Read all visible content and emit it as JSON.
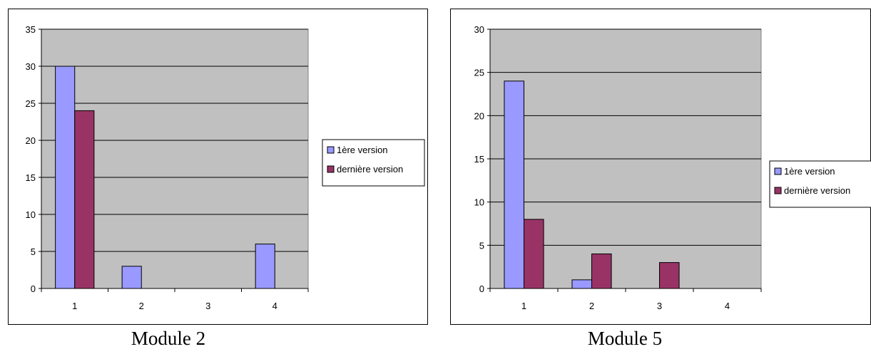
{
  "chart_data": [
    {
      "type": "bar",
      "categories": [
        "1",
        "2",
        "3",
        "4"
      ],
      "series": [
        {
          "name": "1ère version",
          "values": [
            30,
            3,
            0,
            6
          ]
        },
        {
          "name": "dernière version",
          "values": [
            24,
            0,
            0,
            0
          ]
        }
      ],
      "ylim": [
        0,
        35
      ],
      "yticks": [
        "0",
        "5",
        "10",
        "15",
        "20",
        "25",
        "30",
        "35"
      ],
      "grid": true,
      "legend": "right",
      "caption": "Module 2"
    },
    {
      "type": "bar",
      "categories": [
        "1",
        "2",
        "3",
        "4"
      ],
      "series": [
        {
          "name": "1ère version",
          "values": [
            24,
            1,
            0,
            0
          ]
        },
        {
          "name": "dernière version",
          "values": [
            8,
            4,
            3,
            0
          ]
        }
      ],
      "ylim": [
        0,
        30
      ],
      "yticks": [
        "0",
        "5",
        "10",
        "15",
        "20",
        "25",
        "30"
      ],
      "grid": true,
      "legend": "right",
      "caption": "Module 5"
    }
  ],
  "colors": {
    "series1": "#9999ff",
    "series2": "#993366",
    "plot_bg": "#c0c0c0"
  }
}
